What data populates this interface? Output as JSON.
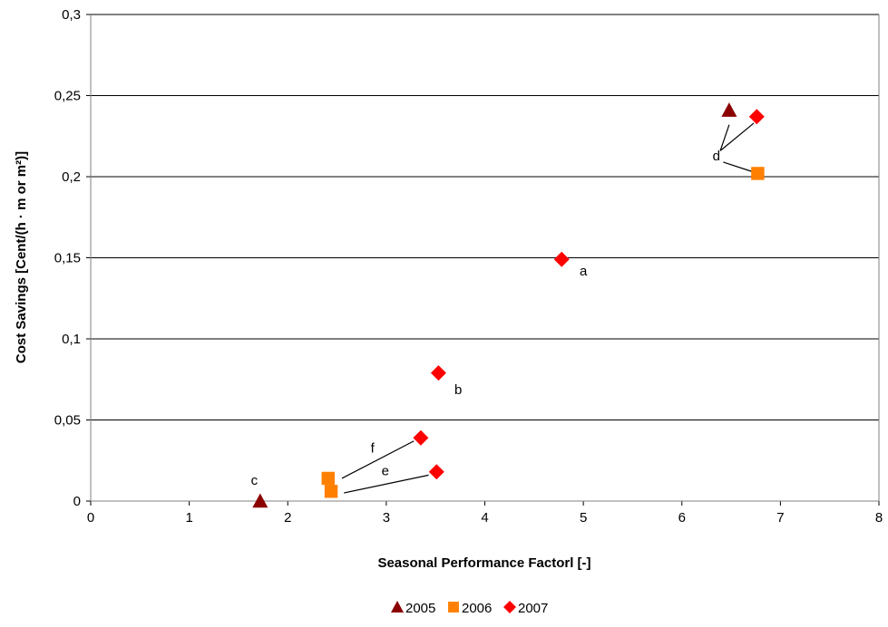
{
  "chart_data": {
    "type": "scatter",
    "title": "",
    "xlabel": "Seasonal Performance Factorl [-]",
    "ylabel": "Cost Savings [Cent/(h · m or m²)]",
    "xlim": [
      0,
      8
    ],
    "ylim": [
      0,
      0.3
    ],
    "x_ticks": [
      "0",
      "1",
      "2",
      "3",
      "4",
      "5",
      "6",
      "7",
      "8"
    ],
    "y_ticks": [
      "0",
      "0,05",
      "0,1",
      "0,15",
      "0,2",
      "0,25",
      "0,3"
    ],
    "grid": "horizontal",
    "legend_position": "bottom",
    "series": [
      {
        "name": "2005",
        "marker": "triangle",
        "color": "#8b0000",
        "points": [
          {
            "x": 1.72,
            "y": 0.0
          },
          {
            "x": 6.48,
            "y": 0.241
          }
        ]
      },
      {
        "name": "2006",
        "marker": "square",
        "color": "#ff8000",
        "points": [
          {
            "x": 2.41,
            "y": 0.014
          },
          {
            "x": 2.44,
            "y": 0.006
          },
          {
            "x": 6.77,
            "y": 0.202
          }
        ]
      },
      {
        "name": "2007",
        "marker": "diamond",
        "color": "#ff0000",
        "points": [
          {
            "x": 4.78,
            "y": 0.149
          },
          {
            "x": 3.53,
            "y": 0.079
          },
          {
            "x": 3.35,
            "y": 0.039
          },
          {
            "x": 3.51,
            "y": 0.018
          },
          {
            "x": 6.76,
            "y": 0.237
          }
        ]
      }
    ],
    "annotations": [
      {
        "text": "a",
        "x": 5.0,
        "y": 0.139
      },
      {
        "text": "b",
        "x": 3.73,
        "y": 0.066
      },
      {
        "text": "c",
        "x": 1.66,
        "y": 0.01
      },
      {
        "text": "d",
        "x": 6.35,
        "y": 0.21
      },
      {
        "text": "e",
        "x": 2.99,
        "y": 0.016
      },
      {
        "text": "f",
        "x": 2.86,
        "y": 0.03
      }
    ],
    "leader_lines": [
      {
        "from": [
          6.39,
          0.216
        ],
        "to": [
          6.48,
          0.232
        ]
      },
      {
        "from": [
          6.39,
          0.216
        ],
        "to": [
          6.73,
          0.233
        ]
      },
      {
        "from": [
          6.42,
          0.209
        ],
        "to": [
          6.72,
          0.203
        ]
      },
      {
        "from": [
          2.55,
          0.014
        ],
        "to": [
          3.28,
          0.037
        ]
      },
      {
        "from": [
          2.57,
          0.005
        ],
        "to": [
          3.43,
          0.016
        ]
      }
    ]
  }
}
